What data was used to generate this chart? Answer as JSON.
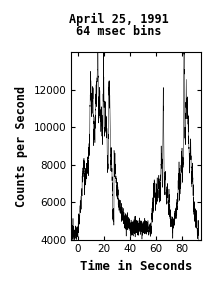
{
  "title_line1": "April 25, 1991",
  "title_line2": "64 msec bins",
  "xlabel": "Time in Seconds",
  "ylabel": "Counts per Second",
  "xlim": [
    -5,
    95
  ],
  "ylim": [
    4000,
    14000
  ],
  "xticks": [
    0,
    20,
    40,
    60,
    80
  ],
  "yticks": [
    4000,
    6000,
    8000,
    10000,
    12000
  ],
  "background_color": "#ffffff",
  "line_color": "#000000",
  "title_fontsize": 8.5,
  "label_fontsize": 9,
  "tick_fontsize": 7.5
}
